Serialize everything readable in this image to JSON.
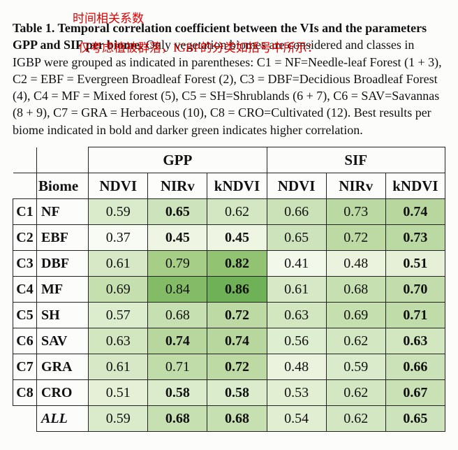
{
  "annotations": {
    "top": "时间相关系数",
    "mid": "仅考虑植被群落，IGBP的分类如括号中所示："
  },
  "caption": {
    "bold1": "Table 1. Temporal correlation coefficient between the VIs and the parameters GPP and SIF per biome.",
    "rest": " Only vegetation biomes are considered and classes in IGBP were grouped as indicated in parentheses: C1 = NF=Needle-leaf Forest (1 + 3), C2 = EBF = Evergreen Broadleaf Forest (2), C3 = DBF=Decidious Broadleaf Forest (4), C4 = MF = Mixed forest (5), C5 = SH=Shrublands (6 + 7), C6 = SAV=Savannas (8 + 9), C7 = GRA = Herbaceous (10), C8 = CRO=Cultivated (12). Best results per biome indicated in bold and darker green indicates higher correlation."
  },
  "table": {
    "top_headers": {
      "gpp": "GPP",
      "sif": "SIF"
    },
    "sub_headers": {
      "biome": "Biome",
      "ndvi": "NDVI",
      "nirv": "NIRv",
      "kndvi": "kNDVI"
    },
    "green_scale_note": "darker green = higher correlation",
    "colors": {
      "min": "#f5f9ee",
      "max": "#66b35d"
    },
    "rows": [
      {
        "id": "C1",
        "biome": "NF",
        "gpp": {
          "ndvi": {
            "v": "0.59",
            "c": "#d9ebca"
          },
          "nirv": {
            "v": "0.65",
            "c": "#cde3bb",
            "b": true
          },
          "kndvi": {
            "v": "0.62",
            "c": "#d4e7c3"
          }
        },
        "sif": {
          "ndvi": {
            "v": "0.66",
            "c": "#cbe2b8"
          },
          "nirv": {
            "v": "0.73",
            "c": "#bbd9a2"
          },
          "kndvi": {
            "v": "0.74",
            "c": "#b8d79e",
            "b": true
          }
        }
      },
      {
        "id": "C2",
        "biome": "EBF",
        "gpp": {
          "ndvi": {
            "v": "0.37",
            "c": "#f8fbf3"
          },
          "nirv": {
            "v": "0.45",
            "c": "#eef5e3",
            "b": true
          },
          "kndvi": {
            "v": "0.45",
            "c": "#eef5e3",
            "b": true
          }
        },
        "sif": {
          "ndvi": {
            "v": "0.65",
            "c": "#cde3bb"
          },
          "nirv": {
            "v": "0.72",
            "c": "#bddaa5"
          },
          "kndvi": {
            "v": "0.73",
            "c": "#bbd9a2",
            "b": true
          }
        }
      },
      {
        "id": "C3",
        "biome": "DBF",
        "gpp": {
          "ndvi": {
            "v": "0.61",
            "c": "#d6e8c6"
          },
          "nirv": {
            "v": "0.79",
            "c": "#a6ce86"
          },
          "kndvi": {
            "v": "0.82",
            "c": "#92c373",
            "b": true
          }
        },
        "sif": {
          "ndvi": {
            "v": "0.41",
            "c": "#f2f8ea"
          },
          "nirv": {
            "v": "0.48",
            "c": "#ebf3de"
          },
          "kndvi": {
            "v": "0.51",
            "c": "#e6f0d7",
            "b": true
          }
        }
      },
      {
        "id": "C4",
        "biome": "MF",
        "gpp": {
          "ndvi": {
            "v": "0.69",
            "c": "#c5dfaf"
          },
          "nirv": {
            "v": "0.84",
            "c": "#84bb67"
          },
          "kndvi": {
            "v": "0.86",
            "c": "#6eb157",
            "b": true
          }
        },
        "sif": {
          "ndvi": {
            "v": "0.61",
            "c": "#d6e8c6"
          },
          "nirv": {
            "v": "0.68",
            "c": "#c7e0b2"
          },
          "kndvi": {
            "v": "0.70",
            "c": "#c2ddab",
            "b": true
          }
        }
      },
      {
        "id": "C5",
        "biome": "SH",
        "gpp": {
          "ndvi": {
            "v": "0.57",
            "c": "#dcedce"
          },
          "nirv": {
            "v": "0.68",
            "c": "#c7e0b2"
          },
          "kndvi": {
            "v": "0.72",
            "c": "#bddaa5",
            "b": true
          }
        },
        "sif": {
          "ndvi": {
            "v": "0.63",
            "c": "#d2e6c0"
          },
          "nirv": {
            "v": "0.69",
            "c": "#c5dfaf"
          },
          "kndvi": {
            "v": "0.71",
            "c": "#c0dca8",
            "b": true
          }
        }
      },
      {
        "id": "C6",
        "biome": "SAV",
        "gpp": {
          "ndvi": {
            "v": "0.63",
            "c": "#d2e6c0"
          },
          "nirv": {
            "v": "0.74",
            "c": "#b8d79e",
            "b": true
          },
          "kndvi": {
            "v": "0.74",
            "c": "#b8d79e",
            "b": true
          }
        },
        "sif": {
          "ndvi": {
            "v": "0.56",
            "c": "#deeed1"
          },
          "nirv": {
            "v": "0.62",
            "c": "#d4e7c3"
          },
          "kndvi": {
            "v": "0.63",
            "c": "#d2e6c0",
            "b": true
          }
        }
      },
      {
        "id": "C7",
        "biome": "GRA",
        "gpp": {
          "ndvi": {
            "v": "0.61",
            "c": "#d6e8c6"
          },
          "nirv": {
            "v": "0.71",
            "c": "#c0dca8"
          },
          "kndvi": {
            "v": "0.72",
            "c": "#bddaa5",
            "b": true
          }
        },
        "sif": {
          "ndvi": {
            "v": "0.48",
            "c": "#ebf3de"
          },
          "nirv": {
            "v": "0.59",
            "c": "#d9ebca"
          },
          "kndvi": {
            "v": "0.66",
            "c": "#cbe2b8",
            "b": true
          }
        }
      },
      {
        "id": "C8",
        "biome": "CRO",
        "gpp": {
          "ndvi": {
            "v": "0.51",
            "c": "#e6f0d7"
          },
          "nirv": {
            "v": "0.58",
            "c": "#daeccc",
            "b": true
          },
          "kndvi": {
            "v": "0.58",
            "c": "#daeccc",
            "b": true
          }
        },
        "sif": {
          "ndvi": {
            "v": "0.53",
            "c": "#e3efd3"
          },
          "nirv": {
            "v": "0.62",
            "c": "#d4e7c3"
          },
          "kndvi": {
            "v": "0.67",
            "c": "#c9e1b5",
            "b": true
          }
        }
      },
      {
        "id": "",
        "biome": "ALL",
        "all": true,
        "gpp": {
          "ndvi": {
            "v": "0.59",
            "c": "#d9ebca"
          },
          "nirv": {
            "v": "0.68",
            "c": "#c7e0b2",
            "b": true
          },
          "kndvi": {
            "v": "0.68",
            "c": "#c7e0b2",
            "b": true
          }
        },
        "sif": {
          "ndvi": {
            "v": "0.54",
            "c": "#e1eed1"
          },
          "nirv": {
            "v": "0.62",
            "c": "#d4e7c3"
          },
          "kndvi": {
            "v": "0.65",
            "c": "#cde3bb",
            "b": true
          }
        }
      }
    ]
  }
}
